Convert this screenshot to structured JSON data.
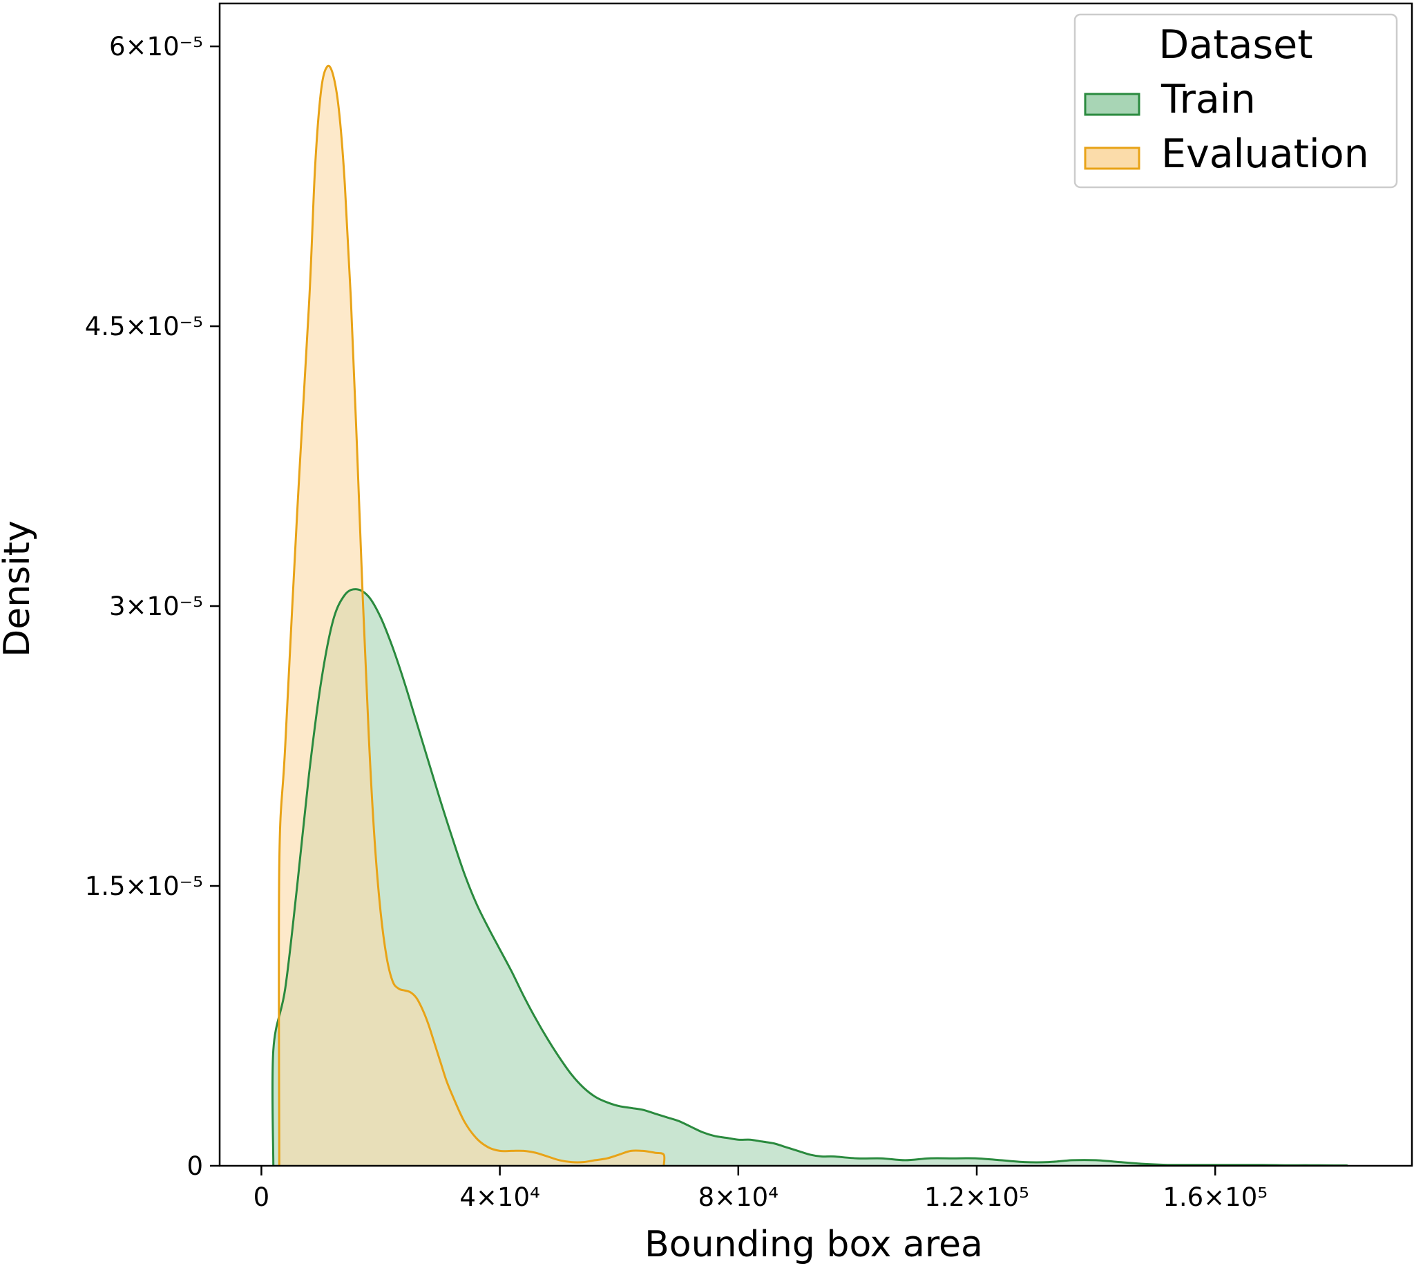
{
  "chart_data": {
    "type": "area",
    "xlabel": "Bounding box area",
    "ylabel": "Density",
    "xlim": [
      -7000,
      193000
    ],
    "ylim": [
      0,
      6.23e-05
    ],
    "grid": false,
    "xticks": [
      {
        "value": 0,
        "label": "0"
      },
      {
        "value": 40000,
        "label": "4×10⁴"
      },
      {
        "value": 80000,
        "label": "8×10⁴"
      },
      {
        "value": 120000,
        "label": "1.2×10⁵"
      },
      {
        "value": 160000,
        "label": "1.6×10⁵"
      }
    ],
    "yticks": [
      {
        "value": 0,
        "label": "0"
      },
      {
        "value": 1.5e-05,
        "label": "1.5×10⁻⁵"
      },
      {
        "value": 3e-05,
        "label": "3×10⁻⁵"
      },
      {
        "value": 4.5e-05,
        "label": "4.5×10⁻⁵"
      },
      {
        "value": 6e-05,
        "label": "6×10⁻⁵"
      }
    ],
    "legend": {
      "title": "Dataset",
      "placement": "top-right",
      "entries": [
        "Train",
        "Evaluation"
      ]
    },
    "series": [
      {
        "name": "Train",
        "stroke": "#2a8a3e",
        "fill": "#a8d5b5",
        "x": [
          2000,
          2000,
          4000,
          6000,
          8000,
          10000,
          12000,
          14000,
          16000,
          18000,
          20000,
          22000,
          24000,
          26000,
          28000,
          30000,
          32000,
          34000,
          36000,
          38000,
          40000,
          42000,
          44000,
          46000,
          48000,
          50000,
          52000,
          54000,
          56000,
          58000,
          60000,
          62000,
          64000,
          66000,
          68000,
          70000,
          72000,
          74000,
          76000,
          78000,
          80000,
          82000,
          84000,
          86000,
          88000,
          90000,
          92000,
          94000,
          96000,
          100000,
          104000,
          108000,
          112000,
          116000,
          120000,
          124000,
          128000,
          132000,
          136000,
          140000,
          144000,
          148000,
          152000,
          156000,
          160000,
          164000,
          168000,
          172000,
          176000,
          180000,
          182000,
          182000
        ],
        "y": [
          0,
          6.2e-06,
          9.5e-06,
          1.5e-05,
          2.1e-05,
          2.59e-05,
          2.92e-05,
          3.06e-05,
          3.09e-05,
          3.05e-05,
          2.94e-05,
          2.78e-05,
          2.59e-05,
          2.38e-05,
          2.17e-05,
          1.96e-05,
          1.76e-05,
          1.57e-05,
          1.41e-05,
          1.28e-05,
          1.16e-05,
          1.04e-05,
          9.1e-06,
          7.9e-06,
          6.8e-06,
          5.8e-06,
          4.9e-06,
          4.2e-06,
          3.7e-06,
          3.4e-06,
          3.2e-06,
          3.1e-06,
          3e-06,
          2.8e-06,
          2.6e-06,
          2.4e-06,
          2.1e-06,
          1.8e-06,
          1.6e-06,
          1.5e-06,
          1.4e-06,
          1.4e-06,
          1.3e-06,
          1.2e-06,
          1e-06,
          8e-07,
          6e-07,
          5e-07,
          5e-07,
          4e-07,
          4e-07,
          3e-07,
          4e-07,
          4e-07,
          4e-07,
          3e-07,
          2e-07,
          2e-07,
          3e-07,
          3e-07,
          2e-07,
          1e-07,
          5e-08,
          5e-08,
          5e-08,
          5e-08,
          5e-08,
          3e-08,
          3e-08,
          2e-08,
          2e-08,
          0
        ]
      },
      {
        "name": "Evaluation",
        "stroke": "#e8a317",
        "fill": "#fbdcaa",
        "x": [
          3000,
          3000,
          4000,
          6000,
          8000,
          9000,
          10000,
          11000,
          12000,
          13000,
          14000,
          15000,
          16000,
          17000,
          18000,
          19000,
          20000,
          21000,
          22000,
          23000,
          24000,
          25000,
          26000,
          27000,
          28000,
          29000,
          30000,
          31000,
          32000,
          34000,
          36000,
          38000,
          40000,
          42000,
          44000,
          46000,
          48000,
          50000,
          52000,
          54000,
          56000,
          58000,
          60000,
          62000,
          64000,
          66000,
          67500,
          67500
        ],
        "y": [
          0,
          1.61e-05,
          2.25e-05,
          3.5e-05,
          4.62e-05,
          5.35e-05,
          5.76e-05,
          5.89e-05,
          5.85e-05,
          5.66e-05,
          5.26e-05,
          4.65e-05,
          3.88e-05,
          3.05e-05,
          2.31e-05,
          1.74e-05,
          1.36e-05,
          1.12e-05,
          9.9e-06,
          9.5e-06,
          9.4e-06,
          9.3e-06,
          9e-06,
          8.4e-06,
          7.6e-06,
          6.6e-06,
          5.6e-06,
          4.6e-06,
          3.8e-06,
          2.4e-06,
          1.5e-06,
          1e-06,
          8e-07,
          8e-07,
          8e-07,
          7e-07,
          5e-07,
          3e-07,
          2e-07,
          2e-07,
          3e-07,
          4e-07,
          6e-07,
          8e-07,
          8e-07,
          7e-07,
          6e-07,
          0
        ]
      }
    ]
  }
}
